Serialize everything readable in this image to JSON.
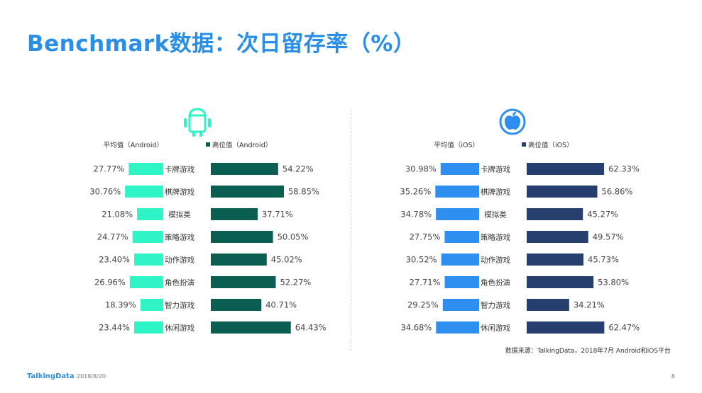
{
  "page": {
    "title": "Benchmark数据：次日留存率（%）",
    "source": "数据来源：TalkingData，2018年7月 Android和iOS平台",
    "brand": "TalkingData",
    "date": "2018/8/20",
    "page_number": "8"
  },
  "chart_data": [
    {
      "type": "bar",
      "platform_icon": "android-icon",
      "categories": [
        "卡牌游戏",
        "棋牌游戏",
        "模拟类",
        "策略游戏",
        "动作游戏",
        "角色扮演",
        "智力游戏",
        "休闲游戏"
      ],
      "series": [
        {
          "name": "平均值（Android）",
          "color": "#2ef4c6",
          "values": [
            27.77,
            30.76,
            21.08,
            24.77,
            23.4,
            26.96,
            18.39,
            23.44
          ],
          "labels": [
            "27.77%",
            "30.76%",
            "21.08%",
            "24.77%",
            "23.40%",
            "26.96%",
            "18.39%",
            "23.44%"
          ]
        },
        {
          "name": "高位值（Android）",
          "color": "#0a5e52",
          "values": [
            54.22,
            58.85,
            37.71,
            50.05,
            45.02,
            52.27,
            40.71,
            64.43
          ],
          "labels": [
            "54.22%",
            "58.85%",
            "37.71%",
            "50.05%",
            "45.02%",
            "52.27%",
            "40.71%",
            "64.43%"
          ]
        }
      ]
    },
    {
      "type": "bar",
      "platform_icon": "apple-icon",
      "categories": [
        "卡牌游戏",
        "棋牌游戏",
        "模拟类",
        "策略游戏",
        "动作游戏",
        "角色扮演",
        "智力游戏",
        "休闲游戏"
      ],
      "series": [
        {
          "name": "平均值（iOS）",
          "color": "#2f8ff0",
          "values": [
            30.98,
            35.26,
            34.78,
            27.75,
            30.52,
            27.71,
            29.25,
            34.68
          ],
          "labels": [
            "30.98%",
            "35.26%",
            "34.78%",
            "27.75%",
            "30.52%",
            "27.71%",
            "29.25%",
            "34.68%"
          ]
        },
        {
          "name": "高位值（iOS）",
          "color": "#263f6e",
          "values": [
            62.33,
            56.86,
            45.27,
            49.57,
            45.73,
            53.8,
            34.21,
            62.47
          ],
          "labels": [
            "62.33%",
            "56.86%",
            "45.27%",
            "49.57%",
            "45.73%",
            "53.80%",
            "34.21%",
            "62.47%"
          ]
        }
      ]
    }
  ]
}
